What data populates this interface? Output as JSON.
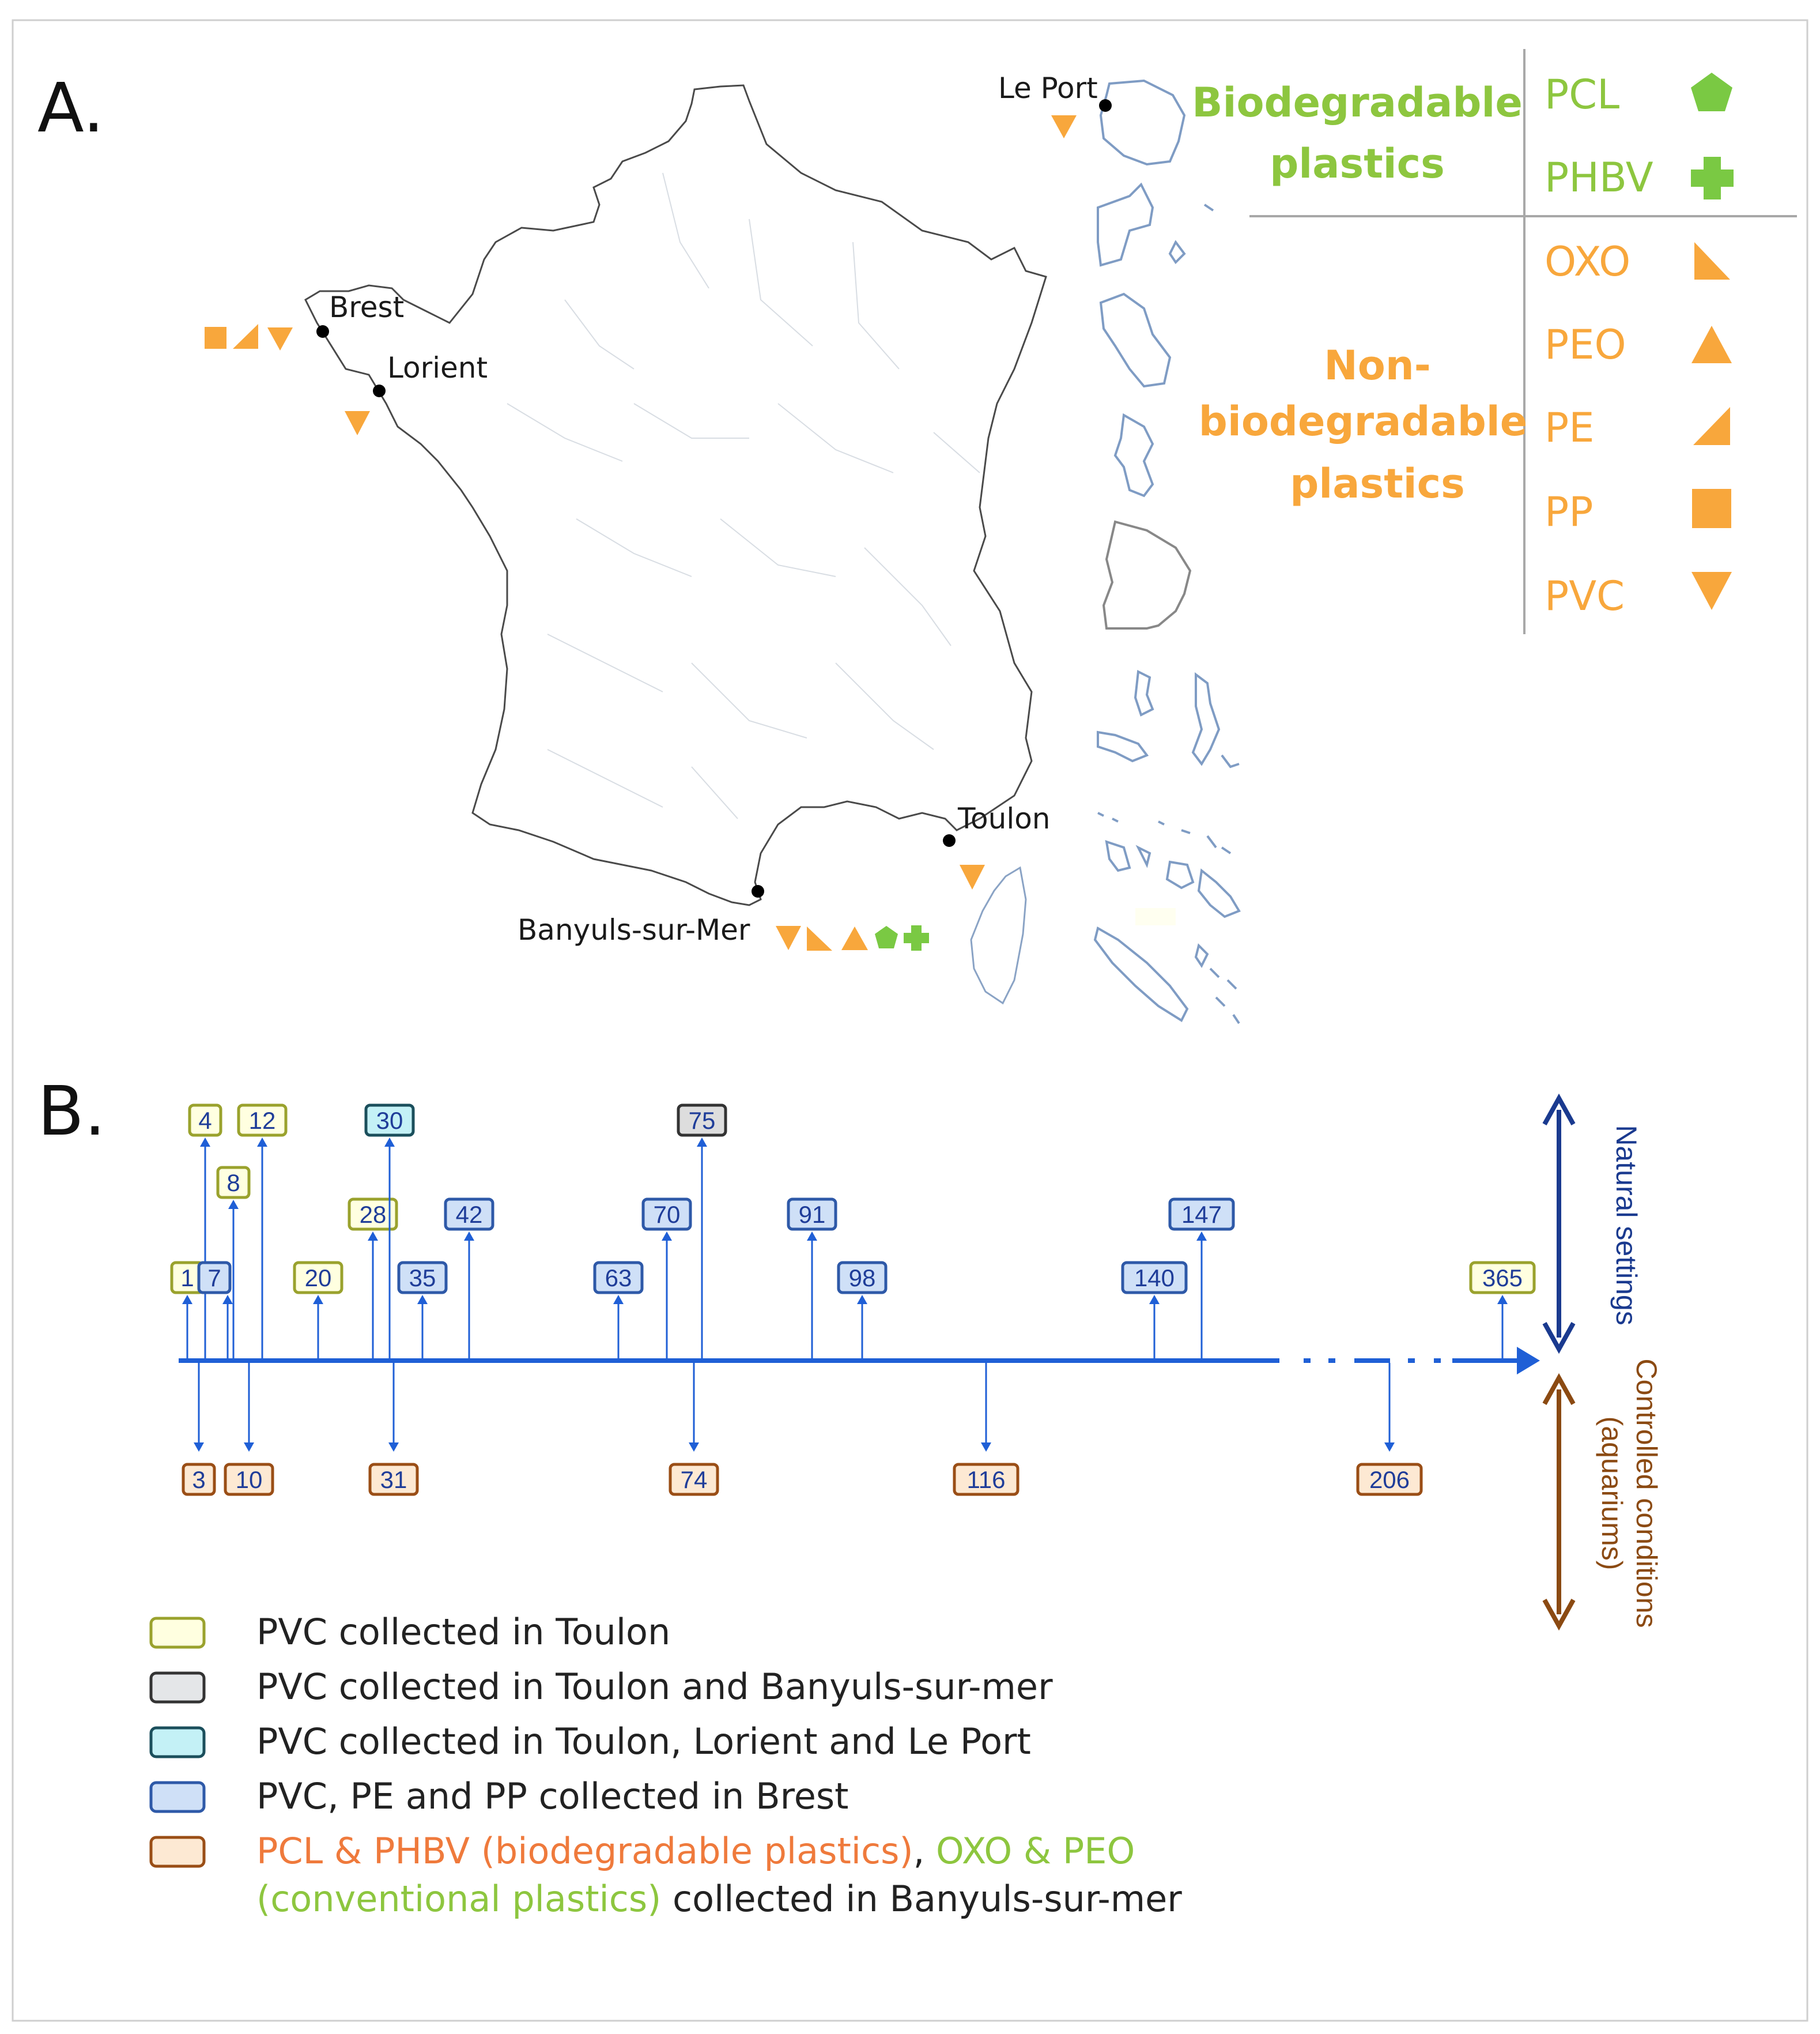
{
  "panel_a": {
    "label": "A.",
    "cities": [
      {
        "name": "Le Port",
        "markers": [
          "pvc"
        ]
      },
      {
        "name": "Brest",
        "markers": [
          "pp",
          "pe",
          "pvc"
        ]
      },
      {
        "name": "Lorient",
        "markers": [
          "pvc"
        ]
      },
      {
        "name": "Toulon",
        "markers": [
          "pvc"
        ]
      },
      {
        "name": "Banyuls-sur-Mer",
        "markers": [
          "pvc",
          "oxo",
          "peo",
          "pcl",
          "phbv"
        ]
      }
    ],
    "legend": {
      "biodegradable": {
        "heading": [
          "Biodegradable",
          "plastics"
        ],
        "items": [
          {
            "label": "PCL",
            "icon": "pentagon-icon"
          },
          {
            "label": "PHBV",
            "icon": "plus-icon"
          }
        ]
      },
      "non_biodegradable": {
        "heading": [
          "Non-",
          "biodegradable",
          "plastics"
        ],
        "items": [
          {
            "label": "OXO",
            "icon": "right-triangle-left-icon"
          },
          {
            "label": "PEO",
            "icon": "triangle-up-icon"
          },
          {
            "label": "PE",
            "icon": "right-triangle-right-icon"
          },
          {
            "label": "PP",
            "icon": "square-icon"
          },
          {
            "label": "PVC",
            "icon": "triangle-down-icon"
          }
        ]
      }
    }
  },
  "panel_b": {
    "label": "B.",
    "natural_label": "Natural settings",
    "controlled_label": [
      "Controlled conditions",
      "(aquariums)"
    ],
    "natural_days": [
      {
        "day": "1",
        "group": "toulon"
      },
      {
        "day": "4",
        "group": "toulon"
      },
      {
        "day": "7",
        "group": "brest"
      },
      {
        "day": "8",
        "group": "toulon"
      },
      {
        "day": "12",
        "group": "toulon"
      },
      {
        "day": "20",
        "group": "toulon"
      },
      {
        "day": "28",
        "group": "toulon"
      },
      {
        "day": "30",
        "group": "toulon_lorient_leport"
      },
      {
        "day": "35",
        "group": "brest"
      },
      {
        "day": "42",
        "group": "brest"
      },
      {
        "day": "63",
        "group": "brest"
      },
      {
        "day": "70",
        "group": "brest"
      },
      {
        "day": "75",
        "group": "toulon_banyuls"
      },
      {
        "day": "91",
        "group": "brest"
      },
      {
        "day": "98",
        "group": "brest"
      },
      {
        "day": "140",
        "group": "brest"
      },
      {
        "day": "147",
        "group": "brest"
      },
      {
        "day": "365",
        "group": "toulon"
      }
    ],
    "controlled_days": [
      "3",
      "10",
      "31",
      "74",
      "116",
      "206"
    ],
    "legend": [
      {
        "group": "toulon",
        "text": "PVC collected in Toulon"
      },
      {
        "group": "toulon_banyuls",
        "text": "PVC collected in Toulon and Banyuls-sur-mer"
      },
      {
        "group": "toulon_lorient_leport",
        "text": "PVC collected in Toulon, Lorient and Le Port"
      },
      {
        "group": "brest",
        "text": "PVC, PE and PP collected in Brest"
      },
      {
        "group": "banyuls_aquarium",
        "parts": [
          {
            "text": "PCL & PHBV (biodegradable plastics)",
            "color": "#ef7a3c"
          },
          {
            "text": ", ",
            "color": "#222222"
          },
          {
            "text": "OXO & PEO",
            "color": "#8dc63f"
          }
        ],
        "line2": [
          {
            "text": "(conventional plastics)",
            "color": "#8dc63f"
          },
          {
            "text": " collected in Banyuls-sur-mer",
            "color": "#222222"
          }
        ]
      }
    ]
  },
  "colors": {
    "orange": "#f8a73c",
    "green": "#7ac943",
    "timeline": "#1f5fd6",
    "natural_arrow": "#1a3a8f",
    "controlled_arrow": "#8b4a12",
    "toulon_stroke": "#9aa22d",
    "toulon_fill": "#ffffe0",
    "brest_stroke": "#2e59a8",
    "brest_fill": "#cfe0f7",
    "tll_stroke": "#1b4f5c",
    "tll_fill": "#c4f1f6",
    "tb_stroke": "#333333",
    "tb_fill": "#dddddd",
    "aq_stroke": "#9a4e16",
    "aq_fill": "#fde9d3",
    "day_text": "#1f3d99"
  }
}
